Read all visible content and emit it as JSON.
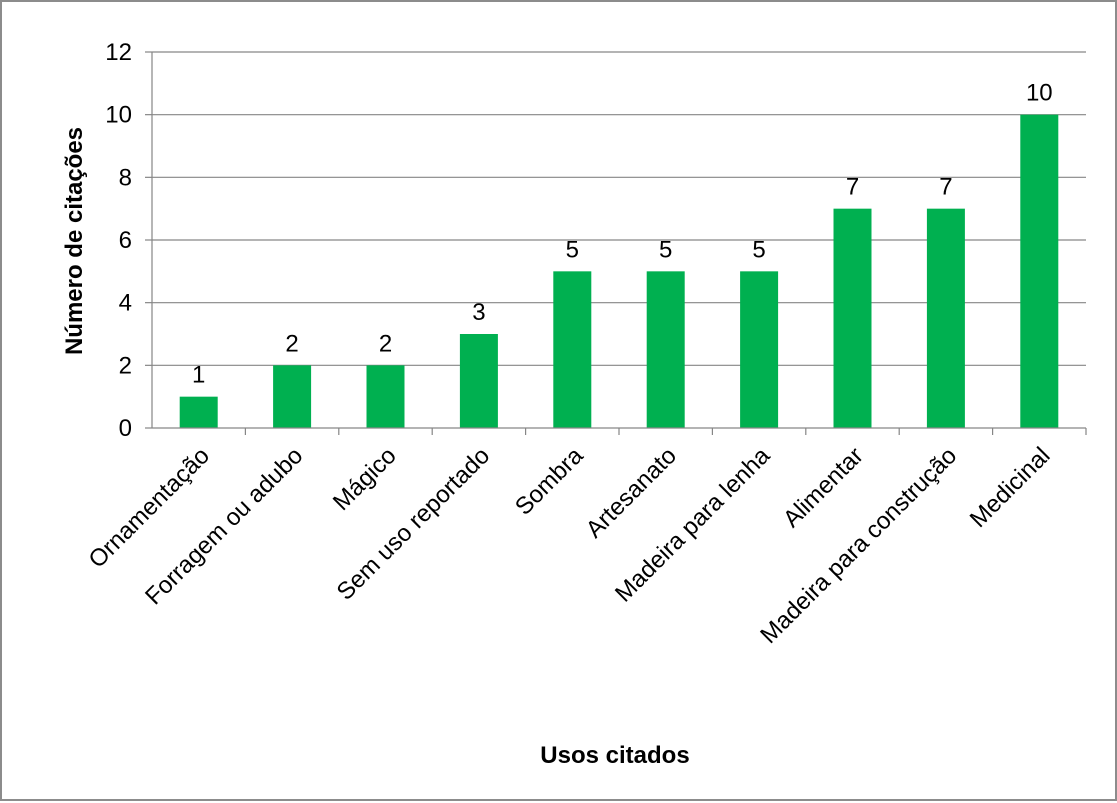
{
  "chart_data": {
    "type": "bar",
    "title": "",
    "xlabel": "Usos citados",
    "ylabel": "Número de citações",
    "categories": [
      "Ornamentação",
      "Forragem ou adubo",
      "Mágico",
      "Sem uso reportado",
      "Sombra",
      "Artesanato",
      "Madeira para lenha",
      "Alimentar",
      "Madeira para construção",
      "Medicinal"
    ],
    "values": [
      1,
      2,
      2,
      3,
      5,
      5,
      5,
      7,
      7,
      10
    ],
    "ylim": [
      0,
      12
    ],
    "yticks": [
      0,
      2,
      4,
      6,
      8,
      10,
      12
    ],
    "grid": true,
    "legend": "none",
    "data_labels": true,
    "bar_color": "#00b050",
    "gridline_color": "#868686"
  }
}
